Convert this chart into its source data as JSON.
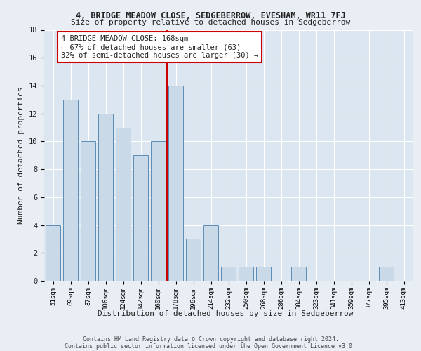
{
  "title": "4, BRIDGE MEADOW CLOSE, SEDGEBERROW, EVESHAM, WR11 7FJ",
  "subtitle": "Size of property relative to detached houses in Sedgeberrow",
  "xlabel": "Distribution of detached houses by size in Sedgeberrow",
  "ylabel": "Number of detached properties",
  "bins": [
    "51sqm",
    "69sqm",
    "87sqm",
    "106sqm",
    "124sqm",
    "142sqm",
    "160sqm",
    "178sqm",
    "196sqm",
    "214sqm",
    "232sqm",
    "250sqm",
    "268sqm",
    "286sqm",
    "304sqm",
    "323sqm",
    "341sqm",
    "359sqm",
    "377sqm",
    "395sqm",
    "413sqm"
  ],
  "values": [
    4,
    13,
    10,
    12,
    11,
    9,
    10,
    14,
    3,
    4,
    1,
    1,
    1,
    0,
    1,
    0,
    0,
    0,
    0,
    1,
    0
  ],
  "bar_color": "#c9d9e8",
  "bar_edge_color": "#5b8db8",
  "vline_color": "#cc0000",
  "vline_x": 6.5,
  "annotation_text": "4 BRIDGE MEADOW CLOSE: 168sqm\n← 67% of detached houses are smaller (63)\n32% of semi-detached houses are larger (30) →",
  "annotation_box_color": "#ffffff",
  "annotation_box_edge": "#cc0000",
  "bg_color": "#e8eef4",
  "plot_bg_color": "#dce6f0",
  "grid_color": "#ffffff",
  "footer": "Contains HM Land Registry data © Crown copyright and database right 2024.\nContains public sector information licensed under the Open Government Licence v3.0.",
  "ylim": [
    0,
    18
  ],
  "yticks": [
    0,
    2,
    4,
    6,
    8,
    10,
    12,
    14,
    16,
    18
  ]
}
